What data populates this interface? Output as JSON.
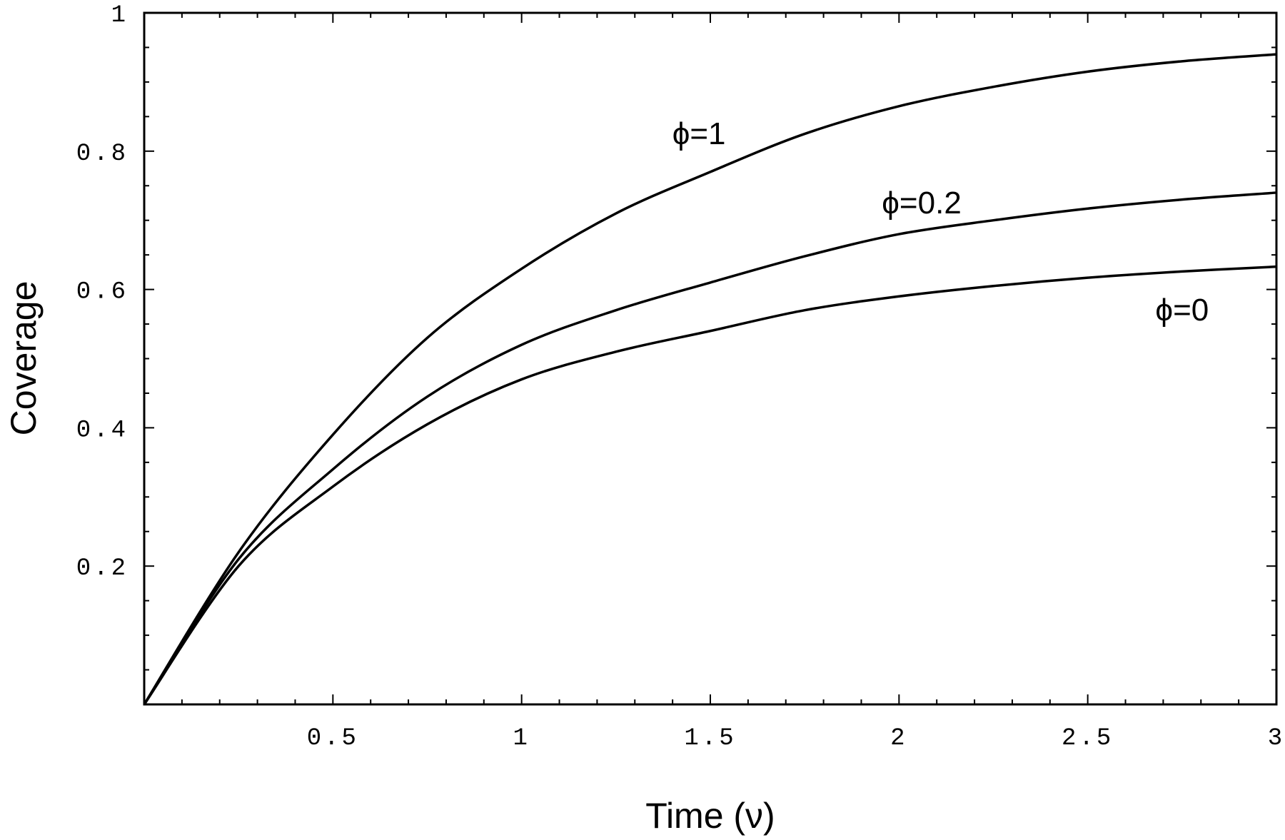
{
  "chart_data": {
    "type": "line",
    "title": "",
    "xlabel": "Time (ν)",
    "ylabel": "Coverage",
    "xlim": [
      0,
      3
    ],
    "ylim": [
      0,
      1
    ],
    "grid": false,
    "x_ticks": [
      0.5,
      1,
      1.5,
      2,
      2.5,
      3
    ],
    "x_tick_labels": [
      "0.5",
      "1",
      "1.5",
      "2",
      "2.5",
      "3"
    ],
    "y_ticks": [
      0.2,
      0.4,
      0.6,
      0.8,
      1
    ],
    "y_tick_labels": [
      "0.2",
      "0.4",
      "0.6",
      "0.8",
      "1"
    ],
    "x": [
      0,
      0.25,
      0.5,
      0.75,
      1,
      1.25,
      1.5,
      1.75,
      2,
      2.25,
      2.5,
      2.75,
      3
    ],
    "series": [
      {
        "name": "ϕ=1",
        "color": "#000000",
        "values": [
          0,
          0.22,
          0.39,
          0.53,
          0.63,
          0.71,
          0.77,
          0.825,
          0.865,
          0.893,
          0.915,
          0.93,
          0.94
        ],
        "label_at": [
          1.47,
          0.81
        ]
      },
      {
        "name": "ϕ=0.2",
        "color": "#000000",
        "values": [
          0,
          0.21,
          0.34,
          0.445,
          0.52,
          0.57,
          0.61,
          0.648,
          0.68,
          0.7,
          0.717,
          0.73,
          0.74
        ],
        "label_at": [
          2.06,
          0.71
        ]
      },
      {
        "name": "ϕ=0",
        "color": "#000000",
        "values": [
          0,
          0.2,
          0.315,
          0.405,
          0.47,
          0.51,
          0.54,
          0.57,
          0.59,
          0.605,
          0.617,
          0.626,
          0.633
        ],
        "label_at": [
          2.75,
          0.555
        ]
      }
    ]
  }
}
